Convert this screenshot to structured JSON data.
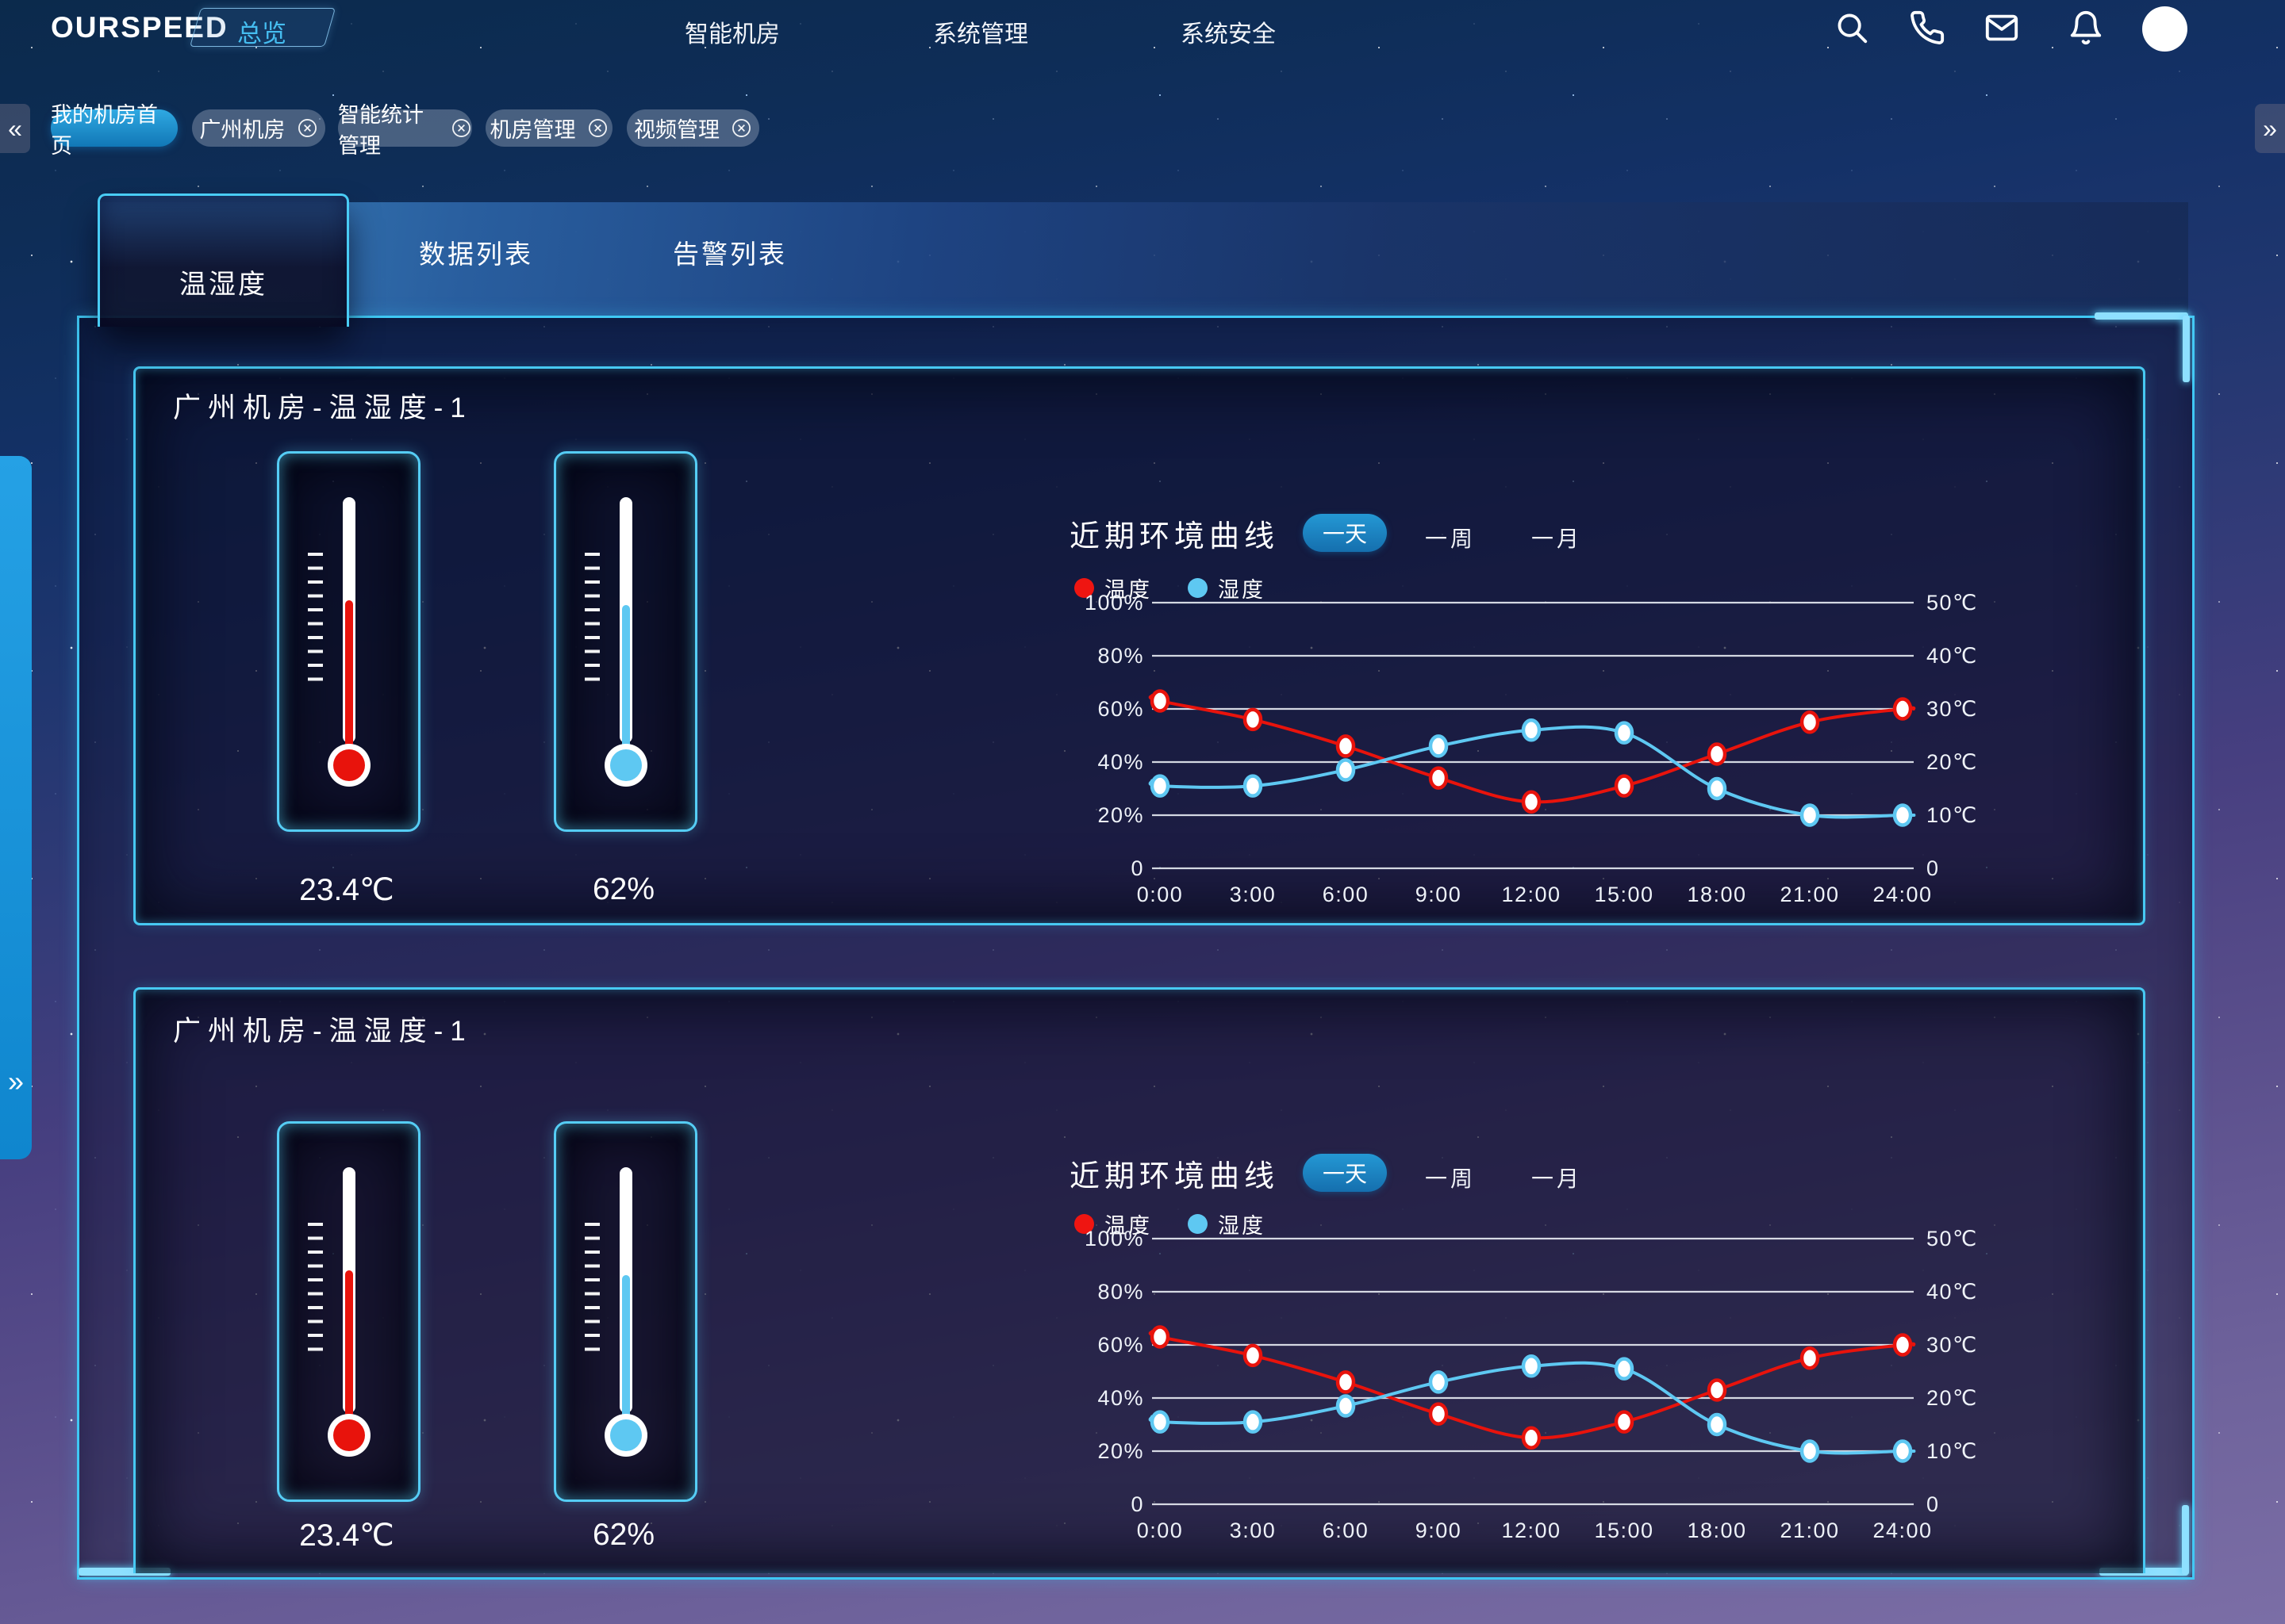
{
  "app": {
    "logo": "OURSPEED"
  },
  "nav": {
    "items": [
      {
        "label": "总览",
        "active": true
      },
      {
        "label": "智能机房",
        "active": false
      },
      {
        "label": "系统管理",
        "active": false
      },
      {
        "label": "系统安全",
        "active": false
      }
    ]
  },
  "tabstrip": {
    "scroll_left": "«",
    "scroll_right": "»",
    "collapse_arrow": "»",
    "tabs": [
      {
        "label": "我的机房首页",
        "active": true,
        "closable": false
      },
      {
        "label": "广州机房",
        "active": false,
        "closable": true
      },
      {
        "label": "智能统计管理",
        "active": false,
        "closable": true
      },
      {
        "label": "机房管理",
        "active": false,
        "closable": true
      },
      {
        "label": "视频管理",
        "active": false,
        "closable": true
      }
    ]
  },
  "content_tabs": [
    {
      "label": "温湿度",
      "active": true
    },
    {
      "label": "数据列表",
      "active": false
    },
    {
      "label": "告警列表",
      "active": false
    }
  ],
  "accent_color": "#3fc8f4",
  "panels": [
    {
      "title": "广州机房-温湿度-1",
      "thermometers": [
        {
          "kind": "temperature",
          "value": "23.4℃",
          "color": "#e8130c",
          "fill_percent": 58
        },
        {
          "kind": "humidity",
          "value": "62%",
          "color": "#5ec8f2",
          "fill_percent": 56
        }
      ],
      "chart_header": {
        "title": "近期环境曲线",
        "range_buttons": [
          {
            "label": "一天",
            "active": true
          },
          {
            "label": "一周",
            "active": false
          },
          {
            "label": "一月",
            "active": false
          }
        ],
        "legend": [
          {
            "label": "温度",
            "color": "#ef1511"
          },
          {
            "label": "湿度",
            "color": "#5ec8f2"
          }
        ]
      }
    },
    {
      "title": "广州机房-温湿度-1",
      "thermometers": [
        {
          "kind": "temperature",
          "value": "23.4℃",
          "color": "#e8130c",
          "fill_percent": 58
        },
        {
          "kind": "humidity",
          "value": "62%",
          "color": "#5ec8f2",
          "fill_percent": 56
        }
      ],
      "chart_header": {
        "title": "近期环境曲线",
        "range_buttons": [
          {
            "label": "一天",
            "active": true
          },
          {
            "label": "一周",
            "active": false
          },
          {
            "label": "一月",
            "active": false
          }
        ],
        "legend": [
          {
            "label": "温度",
            "color": "#ef1511"
          },
          {
            "label": "湿度",
            "color": "#5ec8f2"
          }
        ]
      }
    }
  ],
  "chart_data": [
    {
      "type": "line",
      "title": "近期环境曲线",
      "x": [
        "0:00",
        "3:00",
        "6:00",
        "9:00",
        "12:00",
        "15:00",
        "18:00",
        "21:00",
        "24:00"
      ],
      "y_left": {
        "labels": [
          "100%",
          "80%",
          "60%",
          "40%",
          "20%",
          "0"
        ],
        "lim": [
          0,
          100
        ],
        "unit": "%"
      },
      "y_right": {
        "labels": [
          "50℃",
          "40℃",
          "30℃",
          "20℃",
          "10℃",
          "0"
        ],
        "lim": [
          0,
          50
        ],
        "unit": "℃"
      },
      "grid": true,
      "legend_position": "top",
      "series": [
        {
          "name": "温度",
          "color": "#e8130c",
          "axis": "right",
          "unit": "℃",
          "values": [
            31.5,
            28,
            23,
            17,
            12.5,
            15.5,
            21.5,
            27.5,
            30
          ],
          "edge_left": 32.5,
          "edge_right": 30
        },
        {
          "name": "湿度",
          "color": "#5ec8f2",
          "axis": "left",
          "unit": "%",
          "values": [
            31,
            31,
            37,
            46,
            52,
            51,
            30,
            20,
            20
          ],
          "edge_left": 33,
          "edge_right": 20
        }
      ]
    },
    {
      "type": "line",
      "title": "近期环境曲线",
      "x": [
        "0:00",
        "3:00",
        "6:00",
        "9:00",
        "12:00",
        "15:00",
        "18:00",
        "21:00",
        "24:00"
      ],
      "y_left": {
        "labels": [
          "100%",
          "80%",
          "60%",
          "40%",
          "20%",
          "0"
        ],
        "lim": [
          0,
          100
        ],
        "unit": "%"
      },
      "y_right": {
        "labels": [
          "50℃",
          "40℃",
          "30℃",
          "20℃",
          "10℃",
          "0"
        ],
        "lim": [
          0,
          50
        ],
        "unit": "℃"
      },
      "grid": true,
      "legend_position": "top",
      "series": [
        {
          "name": "温度",
          "color": "#e8130c",
          "axis": "right",
          "unit": "℃",
          "values": [
            31.5,
            28,
            23,
            17,
            12.5,
            15.5,
            21.5,
            27.5,
            30
          ],
          "edge_left": 32.5,
          "edge_right": 30
        },
        {
          "name": "湿度",
          "color": "#5ec8f2",
          "axis": "left",
          "unit": "%",
          "values": [
            31,
            31,
            37,
            46,
            52,
            51,
            30,
            20,
            20
          ],
          "edge_left": 33,
          "edge_right": 20
        }
      ]
    }
  ]
}
